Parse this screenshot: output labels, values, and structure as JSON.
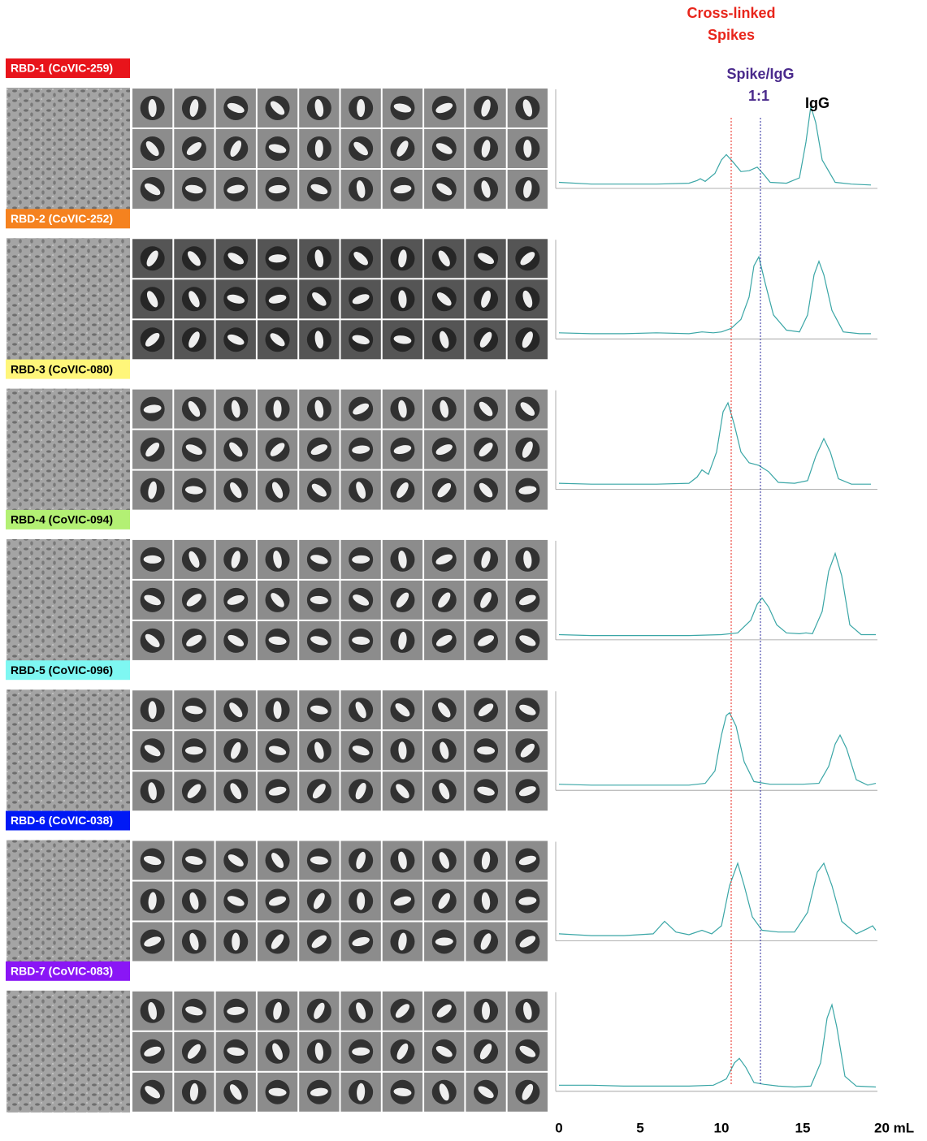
{
  "chart_data": [
    {
      "type": "line",
      "title": "RBD-1 (CoVIC-259)",
      "label_color": "#e8141b",
      "label_text_color": "#ffffff",
      "x": [
        0,
        2,
        4,
        6,
        8,
        8.5,
        8.7,
        9,
        9.6,
        10,
        10.3,
        10.7,
        11.2,
        11.7,
        12.2,
        12.6,
        13,
        14,
        14.8,
        15.2,
        15.5,
        15.8,
        16.2,
        17,
        18,
        19.2
      ],
      "series": [
        {
          "color": "#3aa6a6",
          "values": [
            0.05,
            0.03,
            0.03,
            0.03,
            0.04,
            0.07,
            0.09,
            0.06,
            0.15,
            0.3,
            0.36,
            0.28,
            0.17,
            0.18,
            0.22,
            0.14,
            0.05,
            0.04,
            0.1,
            0.5,
            0.9,
            0.72,
            0.3,
            0.05,
            0.03,
            0.02
          ]
        }
      ],
      "xlim": [
        0,
        20
      ],
      "ylim": [
        0,
        1
      ],
      "annotations": [
        {
          "text": "Cross-linked Spikes",
          "x": 10.6,
          "color": "#e8251b",
          "line": true
        },
        {
          "text": "Spike/IgG 1:1",
          "x": 12.4,
          "color": "#4a2a8c",
          "line": true
        },
        {
          "text": "IgG",
          "x": 15.9,
          "color": "#000000",
          "line": false
        }
      ]
    },
    {
      "type": "line",
      "title": "RBD-2 (CoVIC-252)",
      "label_color": "#f5821f",
      "label_text_color": "#ffffff",
      "x": [
        0,
        2,
        4,
        6,
        8,
        8.8,
        9.5,
        10,
        10.6,
        11.2,
        11.7,
        12,
        12.3,
        12.7,
        13.2,
        14,
        14.8,
        15.3,
        15.7,
        16,
        16.3,
        16.8,
        17.5,
        18.5,
        19.2
      ],
      "series": [
        {
          "color": "#3aa6a6",
          "values": [
            0.05,
            0.04,
            0.04,
            0.05,
            0.04,
            0.06,
            0.05,
            0.06,
            0.1,
            0.2,
            0.45,
            0.8,
            0.9,
            0.6,
            0.25,
            0.08,
            0.06,
            0.25,
            0.7,
            0.85,
            0.7,
            0.3,
            0.06,
            0.04,
            0.04
          ]
        }
      ],
      "xlim": [
        0,
        20
      ],
      "ylim": [
        0,
        1
      ]
    },
    {
      "type": "line",
      "title": "RBD-3 (CoVIC-080)",
      "label_color": "#fff67a",
      "label_text_color": "#000000",
      "x": [
        0,
        2,
        4,
        6,
        8,
        8.5,
        8.8,
        9.2,
        9.7,
        10.1,
        10.4,
        10.8,
        11.2,
        11.7,
        12.3,
        12.9,
        13.5,
        14.5,
        15.3,
        15.8,
        16.3,
        16.7,
        17.2,
        18,
        19.2
      ],
      "series": [
        {
          "color": "#3aa6a6",
          "values": [
            0.05,
            0.04,
            0.04,
            0.04,
            0.05,
            0.12,
            0.2,
            0.15,
            0.4,
            0.85,
            0.95,
            0.7,
            0.4,
            0.28,
            0.25,
            0.18,
            0.06,
            0.05,
            0.08,
            0.35,
            0.55,
            0.4,
            0.1,
            0.04,
            0.04
          ]
        }
      ],
      "xlim": [
        0,
        20
      ],
      "ylim": [
        0,
        1
      ]
    },
    {
      "type": "line",
      "title": "RBD-4 (CoVIC-094)",
      "label_color": "#b3f074",
      "label_text_color": "#000000",
      "x": [
        0,
        2,
        4,
        6,
        8,
        10,
        11,
        11.8,
        12.2,
        12.5,
        12.9,
        13.4,
        14,
        14.8,
        15.2,
        15.6,
        16.2,
        16.6,
        17,
        17.4,
        17.9,
        18.6,
        19.5
      ],
      "series": [
        {
          "color": "#3aa6a6",
          "values": [
            0.04,
            0.03,
            0.03,
            0.03,
            0.03,
            0.04,
            0.06,
            0.2,
            0.38,
            0.45,
            0.35,
            0.15,
            0.06,
            0.05,
            0.06,
            0.05,
            0.3,
            0.75,
            0.95,
            0.7,
            0.15,
            0.04,
            0.04
          ]
        }
      ],
      "xlim": [
        0,
        20
      ],
      "ylim": [
        0,
        1
      ]
    },
    {
      "type": "line",
      "title": "RBD-5 (CoVIC-096)",
      "label_color": "#7ef7f2",
      "label_text_color": "#000000",
      "x": [
        0,
        2,
        4,
        6,
        8,
        9,
        9.6,
        10,
        10.3,
        10.5,
        10.9,
        11.4,
        12,
        13,
        14,
        15,
        16,
        16.6,
        17,
        17.3,
        17.7,
        18.3,
        19,
        19.5
      ],
      "series": [
        {
          "color": "#3aa6a6",
          "values": [
            0.05,
            0.04,
            0.04,
            0.04,
            0.04,
            0.06,
            0.2,
            0.6,
            0.82,
            0.85,
            0.7,
            0.3,
            0.08,
            0.05,
            0.05,
            0.05,
            0.06,
            0.25,
            0.5,
            0.6,
            0.45,
            0.1,
            0.04,
            0.06
          ]
        }
      ],
      "xlim": [
        0,
        20
      ],
      "ylim": [
        0,
        1
      ]
    },
    {
      "type": "line",
      "title": "RBD-6 (CoVIC-038)",
      "label_color": "#0019f5",
      "label_text_color": "#ffffff",
      "x": [
        0,
        2,
        4,
        5.8,
        6.5,
        7.2,
        8,
        8.8,
        9.4,
        10,
        10.5,
        11,
        11.4,
        11.9,
        12.5,
        13.5,
        14.5,
        15.3,
        15.9,
        16.3,
        16.8,
        17.4,
        18.3,
        19,
        19.3,
        19.5
      ],
      "series": [
        {
          "color": "#3aa6a6",
          "values": [
            0.06,
            0.04,
            0.04,
            0.06,
            0.2,
            0.08,
            0.05,
            0.1,
            0.06,
            0.15,
            0.6,
            0.85,
            0.6,
            0.25,
            0.1,
            0.08,
            0.08,
            0.3,
            0.75,
            0.85,
            0.6,
            0.2,
            0.06,
            0.12,
            0.15,
            0.1
          ]
        }
      ],
      "xlim": [
        0,
        20
      ],
      "ylim": [
        0,
        1
      ]
    },
    {
      "type": "line",
      "title": "RBD-7 (CoVIC-083)",
      "label_color": "#8a16f5",
      "label_text_color": "#ffffff",
      "x": [
        0,
        2,
        4,
        6,
        8,
        9.5,
        10.3,
        10.8,
        11.1,
        11.5,
        12,
        12.6,
        13.5,
        14.5,
        15.5,
        16.1,
        16.5,
        16.8,
        17.1,
        17.6,
        18.3,
        19.5
      ],
      "series": [
        {
          "color": "#3aa6a6",
          "values": [
            0.05,
            0.05,
            0.04,
            0.04,
            0.04,
            0.05,
            0.12,
            0.3,
            0.35,
            0.25,
            0.08,
            0.06,
            0.04,
            0.03,
            0.04,
            0.3,
            0.8,
            0.95,
            0.7,
            0.15,
            0.04,
            0.03
          ]
        }
      ],
      "xlim": [
        0,
        20
      ],
      "ylim": [
        0,
        1
      ],
      "xticks": [
        0,
        5,
        10,
        15,
        {
          "value": 20,
          "label": "20 mL"
        }
      ]
    }
  ]
}
